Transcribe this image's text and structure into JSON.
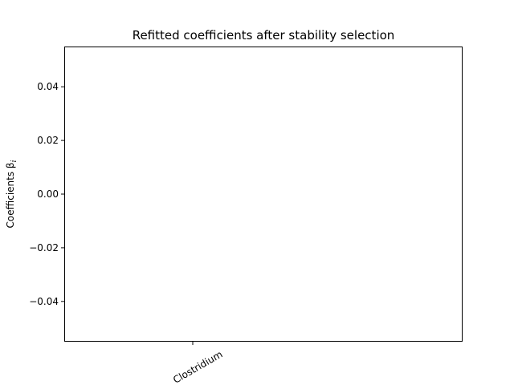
{
  "chart_data": {
    "type": "bar",
    "title": "Refitted coefficients after stability selection",
    "xlabel": "",
    "ylabel": "Coefficients β",
    "ylabel_subscript": "i",
    "categories": [
      "Clostridium"
    ],
    "values": [
      0
    ],
    "ylim": [
      -0.055,
      0.055
    ],
    "yticks": [
      0.04,
      0.02,
      0.0,
      -0.02,
      -0.04
    ],
    "ytick_labels": [
      "0.04",
      "0.02",
      "0.00",
      "−0.02",
      "−0.04"
    ],
    "xtick_rotation_deg": 30,
    "grid": false,
    "legend": "none",
    "colors": {
      "frame": "#000000",
      "background": "#ffffff"
    }
  }
}
